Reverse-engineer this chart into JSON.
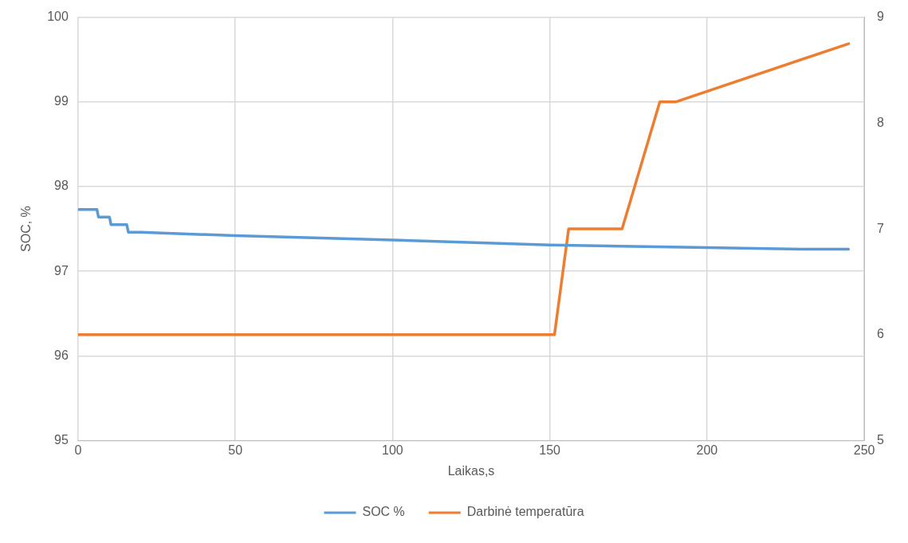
{
  "chart_data": {
    "type": "line",
    "xlabel": "Laikas,s",
    "ylabel": "SOC, %",
    "xlim": [
      0,
      250
    ],
    "xticks": [
      0,
      50,
      100,
      150,
      200,
      250
    ],
    "ylim": [
      95,
      100
    ],
    "yticks": [
      95,
      96,
      97,
      98,
      99,
      100
    ],
    "y2lim": [
      5,
      9
    ],
    "y2ticks": [
      5,
      6,
      7,
      8,
      9
    ],
    "grid": true,
    "legend": "bottom",
    "marker": "none",
    "series": [
      {
        "name": "SOC %",
        "color": "#5b9bd5",
        "x": [
          0,
          6,
          6.5,
          10,
          10.5,
          15.5,
          16,
          20,
          50,
          100,
          150,
          200,
          230,
          245
        ],
        "values": [
          97.73,
          97.73,
          97.64,
          97.64,
          97.55,
          97.55,
          97.46,
          97.46,
          97.42,
          97.37,
          97.31,
          97.28,
          97.26,
          97.26
        ]
      },
      {
        "name": "Darbinė temperatūra",
        "color": "#ed7d31",
        "axis": "y2",
        "x": [
          0,
          151.5,
          156,
          173,
          185,
          190,
          245
        ],
        "values": [
          6,
          6,
          7,
          7,
          8.2,
          8.2,
          8.75
        ]
      }
    ]
  }
}
